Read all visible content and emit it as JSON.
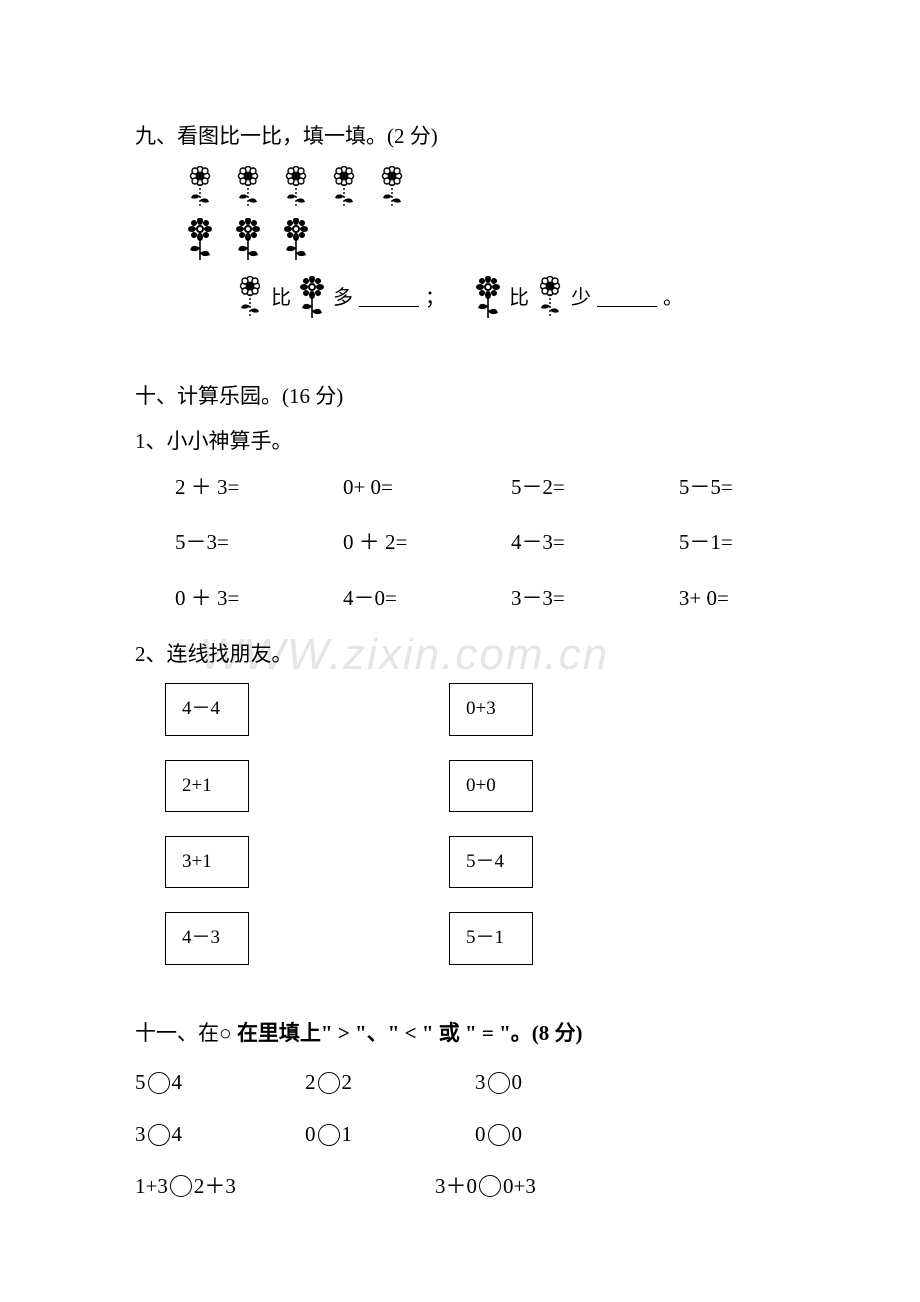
{
  "watermark": "WWW.zixin.com.cn",
  "section9": {
    "heading": "九、看图比一比，填一填。(2 分)",
    "row1_count": 5,
    "row2_count": 3,
    "compare1_mid": "比",
    "compare1_suffix": "多",
    "compare_sep": "；",
    "compare2_mid": "比",
    "compare2_suffix": "少",
    "compare_end": "。"
  },
  "section10": {
    "heading": "十、计算乐园。(16 分)",
    "sub1": "1、小小神算手。",
    "grid": [
      [
        "2 ＋ 3=",
        "0+ 0=",
        "5－2=",
        "5－5="
      ],
      [
        "5－3=",
        "0 ＋ 2=",
        "4－3=",
        "5－1="
      ],
      [
        "0 ＋ 3=",
        "4－0=",
        "3－3=",
        "3+ 0="
      ]
    ],
    "sub2": "2、连线找朋友。",
    "left_boxes": [
      "4－4",
      "2+1",
      "3+1",
      "4－3"
    ],
    "right_boxes": [
      "0+3",
      "0+0",
      "5－4",
      "5－1"
    ]
  },
  "section11": {
    "heading_prefix": "十一、在○ ",
    "heading_bold": "在里填上\" > \"、\" < \" 或 \" = \"。(8 分)",
    "rows": [
      [
        [
          "5",
          "4"
        ],
        [
          "2",
          "2"
        ],
        [
          "3",
          "0"
        ]
      ],
      [
        [
          "3",
          "4"
        ],
        [
          "0",
          "1"
        ],
        [
          "0",
          "0"
        ]
      ]
    ],
    "row3": [
      [
        "1+3",
        "2＋3"
      ],
      [
        "3＋0",
        "0+3"
      ]
    ]
  },
  "colors": {
    "text": "#000000",
    "background": "#ffffff",
    "watermark": "#e5e5e5"
  }
}
